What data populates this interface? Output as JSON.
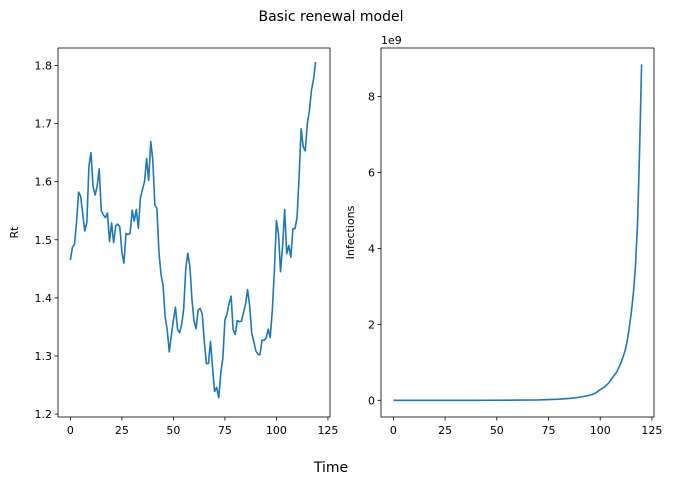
{
  "figure": {
    "title": "Basic renewal model",
    "xlabel": "Time"
  },
  "chart_data": [
    {
      "type": "line",
      "ylabel": "Rt",
      "xlim": [
        -6,
        126
      ],
      "ylim": [
        1.195,
        1.83
      ],
      "xticks": [
        0,
        25,
        50,
        75,
        100,
        125
      ],
      "yticks": [
        1.2,
        1.3,
        1.4,
        1.5,
        1.6,
        1.7,
        1.8
      ],
      "ytick_labels": [
        "1.2",
        "1.3",
        "1.4",
        "1.5",
        "1.6",
        "1.7",
        "1.8"
      ],
      "line_color": "#1f77b4",
      "x_start": 0,
      "x_step": 1,
      "values": [
        1.465,
        1.487,
        1.492,
        1.53,
        1.582,
        1.575,
        1.545,
        1.515,
        1.53,
        1.626,
        1.65,
        1.592,
        1.577,
        1.592,
        1.622,
        1.55,
        1.543,
        1.538,
        1.546,
        1.497,
        1.529,
        1.495,
        1.524,
        1.527,
        1.522,
        1.479,
        1.46,
        1.511,
        1.509,
        1.511,
        1.551,
        1.532,
        1.552,
        1.52,
        1.572,
        1.587,
        1.6,
        1.64,
        1.602,
        1.669,
        1.637,
        1.56,
        1.554,
        1.478,
        1.44,
        1.421,
        1.367,
        1.345,
        1.307,
        1.336,
        1.361,
        1.384,
        1.346,
        1.34,
        1.354,
        1.381,
        1.45,
        1.477,
        1.454,
        1.398,
        1.36,
        1.347,
        1.379,
        1.382,
        1.372,
        1.325,
        1.287,
        1.287,
        1.325,
        1.28,
        1.239,
        1.246,
        1.228,
        1.271,
        1.296,
        1.362,
        1.372,
        1.39,
        1.403,
        1.345,
        1.337,
        1.361,
        1.359,
        1.36,
        1.374,
        1.389,
        1.414,
        1.387,
        1.34,
        1.325,
        1.309,
        1.303,
        1.302,
        1.327,
        1.327,
        1.331,
        1.346,
        1.332,
        1.378,
        1.446,
        1.533,
        1.51,
        1.445,
        1.49,
        1.552,
        1.476,
        1.49,
        1.47,
        1.519,
        1.519,
        1.538,
        1.608,
        1.691,
        1.66,
        1.653,
        1.7,
        1.722,
        1.757,
        1.776,
        1.806
      ]
    },
    {
      "type": "line",
      "ylabel": "Infections",
      "offset_text": "1e9",
      "xlim": [
        -6,
        126
      ],
      "ylim": [
        -0.44,
        9.28
      ],
      "xticks": [
        0,
        25,
        50,
        75,
        100,
        125
      ],
      "yticks": [
        0,
        2,
        4,
        6,
        8
      ],
      "ytick_labels": [
        "0",
        "2",
        "4",
        "6",
        "8"
      ],
      "line_color": "#1f77b4",
      "points": [
        [
          0,
          0.0
        ],
        [
          20,
          0.0
        ],
        [
          40,
          0.0
        ],
        [
          60,
          0.005
        ],
        [
          70,
          0.01
        ],
        [
          75,
          0.02
        ],
        [
          80,
          0.03
        ],
        [
          85,
          0.05
        ],
        [
          90,
          0.08
        ],
        [
          93,
          0.11
        ],
        [
          96,
          0.15
        ],
        [
          98,
          0.2
        ],
        [
          100,
          0.28
        ],
        [
          102,
          0.35
        ],
        [
          104,
          0.45
        ],
        [
          106,
          0.6
        ],
        [
          108,
          0.75
        ],
        [
          110,
          0.98
        ],
        [
          112,
          1.3
        ],
        [
          113,
          1.55
        ],
        [
          114,
          1.9
        ],
        [
          115,
          2.3
        ],
        [
          116,
          2.8
        ],
        [
          117,
          3.5
        ],
        [
          118,
          4.6
        ],
        [
          119,
          6.5
        ],
        [
          120,
          8.85
        ]
      ]
    }
  ]
}
